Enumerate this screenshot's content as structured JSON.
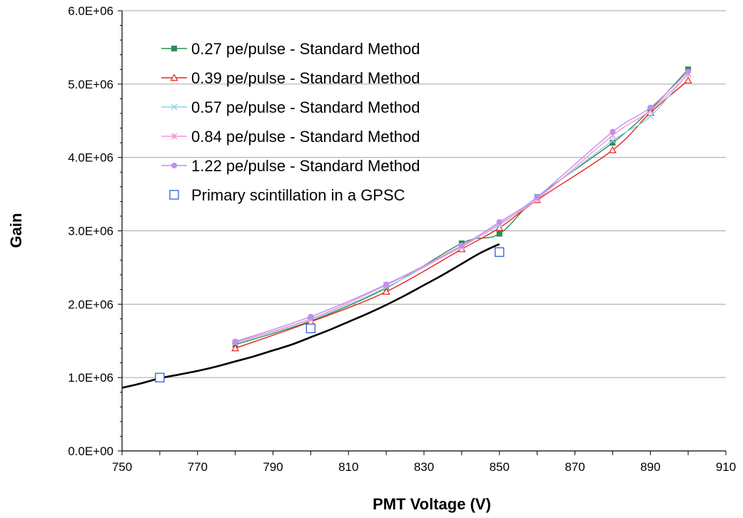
{
  "chart_data": {
    "type": "line",
    "title": "",
    "xlabel": "PMT Voltage (V)",
    "ylabel": "Gain",
    "xlim": [
      750,
      910
    ],
    "ylim": [
      0,
      6000000
    ],
    "x_ticks": [
      750,
      770,
      790,
      810,
      830,
      850,
      870,
      890,
      910
    ],
    "x_tick_labels": [
      "750",
      "770",
      "790",
      "810",
      "830",
      "850",
      "870",
      "890",
      "910"
    ],
    "y_ticks": [
      0,
      1000000,
      2000000,
      3000000,
      4000000,
      5000000,
      6000000
    ],
    "y_tick_labels": [
      "0.0E+00",
      "1.0E+06",
      "2.0E+06",
      "3.0E+06",
      "4.0E+06",
      "5.0E+06",
      "6.0E+06"
    ],
    "grid": "horizontal major gridlines",
    "legend_position": "top-left",
    "series": [
      {
        "name": "0.27 pe/pulse - Standard Method",
        "color": "#2e8b57",
        "marker": "square-filled",
        "x": [
          780,
          800,
          820,
          840,
          850,
          860,
          880,
          890,
          900
        ],
        "y": [
          1450000,
          1770000,
          2220000,
          2830000,
          2960000,
          3460000,
          4200000,
          4650000,
          5200000
        ]
      },
      {
        "name": "0.39 pe/pulse - Standard Method",
        "color": "#e8221b",
        "marker": "triangle-open",
        "x": [
          780,
          800,
          820,
          840,
          850,
          860,
          880,
          890,
          900
        ],
        "y": [
          1400000,
          1760000,
          2170000,
          2750000,
          3040000,
          3420000,
          4100000,
          4610000,
          5050000
        ]
      },
      {
        "name": "0.57 pe/pulse - Standard Method",
        "color": "#8fd3e8",
        "marker": "x",
        "x": [
          780,
          800,
          820,
          840,
          850,
          860,
          880,
          890,
          900
        ],
        "y": [
          1470000,
          1790000,
          2230000,
          2790000,
          3080000,
          3450000,
          4230000,
          4560000,
          5150000
        ]
      },
      {
        "name": "0.84 pe/pulse - Standard Method",
        "color": "#f59ad3",
        "marker": "star",
        "x": [
          780,
          800,
          820,
          840,
          850,
          860,
          880,
          890,
          900
        ],
        "y": [
          1480000,
          1800000,
          2260000,
          2780000,
          3100000,
          3430000,
          4300000,
          4640000,
          5130000
        ]
      },
      {
        "name": "1.22 pe/pulse - Standard Method",
        "color": "#c28df0",
        "marker": "circle-filled",
        "x": [
          780,
          800,
          820,
          840,
          850,
          860,
          880,
          890,
          900
        ],
        "y": [
          1490000,
          1830000,
          2270000,
          2800000,
          3120000,
          3460000,
          4350000,
          4680000,
          5170000
        ]
      },
      {
        "name": "Primary scintillation in a GPSC",
        "color": "#2f5fd6",
        "marker": "square-open",
        "line": "none",
        "x": [
          760,
          800,
          850
        ],
        "y": [
          1000000,
          1670000,
          2710000
        ]
      },
      {
        "color": "#000000",
        "marker": "none",
        "x": [
          750,
          755,
          760,
          765,
          770,
          775,
          780,
          785,
          790,
          795,
          800,
          805,
          810,
          815,
          820,
          825,
          830,
          835,
          840,
          845,
          850
        ],
        "y": [
          860000,
          920000,
          990000,
          1040000,
          1090000,
          1150000,
          1220000,
          1290000,
          1370000,
          1450000,
          1550000,
          1650000,
          1760000,
          1870000,
          1990000,
          2120000,
          2260000,
          2400000,
          2550000,
          2700000,
          2820000
        ]
      }
    ]
  }
}
